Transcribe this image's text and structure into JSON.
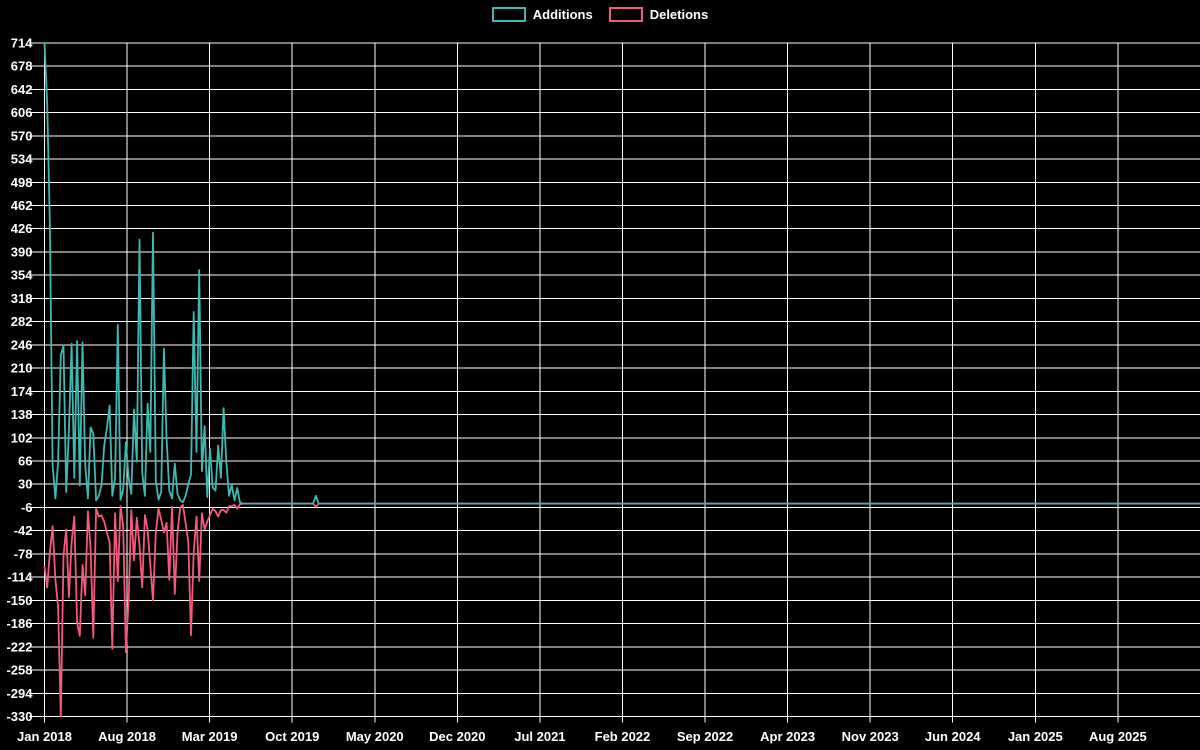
{
  "chart_data": {
    "type": "line",
    "title": "",
    "description": "Weekly code additions and deletions frequency chart on black background with white grid",
    "legend_position": "top-center",
    "grid": true,
    "background_color": "#000000",
    "grid_color": "#ffffff",
    "axis_text_color": "#ffffff",
    "series": [
      {
        "name": "Additions",
        "color": "#3fb8af"
      },
      {
        "name": "Deletions",
        "color": "#f4597c"
      }
    ],
    "x_axis": {
      "unit": "week",
      "start_week": "2018-01-01",
      "weeks_total": 427,
      "tick_labels": [
        "Jan 2018",
        "Aug 2018",
        "Mar 2019",
        "Oct 2019",
        "May 2020",
        "Dec 2020",
        "Jul 2021",
        "Feb 2022",
        "Sep 2022",
        "Apr 2023",
        "Nov 2023",
        "Jun 2024",
        "Jan 2025",
        "Aug 2025"
      ],
      "tick_spacing_months": 7
    },
    "y_axis": {
      "max": 714,
      "min": -330,
      "step": 36,
      "tick_labels": [
        714,
        678,
        642,
        606,
        570,
        534,
        498,
        462,
        426,
        390,
        354,
        318,
        282,
        246,
        210,
        174,
        138,
        102,
        66,
        30,
        -6,
        -42,
        -78,
        -114,
        -150,
        -186,
        -222,
        -258,
        -294,
        -330
      ]
    },
    "weekly_data_columns": [
      "week_index",
      "week_start",
      "additions",
      "deletions"
    ],
    "weekly_data": [
      [
        0,
        "2018-01-01",
        714,
        -98
      ],
      [
        1,
        "2018-01-08",
        620,
        -130
      ],
      [
        2,
        "2018-01-15",
        430,
        -75
      ],
      [
        3,
        "2018-01-22",
        60,
        -35
      ],
      [
        4,
        "2018-01-29",
        8,
        -118
      ],
      [
        5,
        "2018-02-05",
        65,
        -160
      ],
      [
        6,
        "2018-02-12",
        230,
        -330
      ],
      [
        7,
        "2018-02-19",
        245,
        -80
      ],
      [
        8,
        "2018-02-26",
        18,
        -40
      ],
      [
        9,
        "2018-03-05",
        112,
        -145
      ],
      [
        10,
        "2018-03-12",
        248,
        -60
      ],
      [
        11,
        "2018-03-19",
        40,
        -20
      ],
      [
        12,
        "2018-03-26",
        252,
        -185
      ],
      [
        13,
        "2018-04-02",
        28,
        -205
      ],
      [
        14,
        "2018-04-09",
        250,
        -95
      ],
      [
        15,
        "2018-04-16",
        60,
        -142
      ],
      [
        16,
        "2018-04-23",
        8,
        -12
      ],
      [
        17,
        "2018-04-30",
        118,
        -70
      ],
      [
        18,
        "2018-05-07",
        108,
        -208
      ],
      [
        19,
        "2018-05-14",
        5,
        -8
      ],
      [
        20,
        "2018-05-21",
        12,
        -20
      ],
      [
        21,
        "2018-05-28",
        28,
        -18
      ],
      [
        22,
        "2018-06-04",
        90,
        -28
      ],
      [
        23,
        "2018-06-11",
        117,
        -45
      ],
      [
        24,
        "2018-06-18",
        152,
        -60
      ],
      [
        25,
        "2018-06-25",
        12,
        -225
      ],
      [
        26,
        "2018-07-02",
        40,
        -15
      ],
      [
        27,
        "2018-07-09",
        277,
        -120
      ],
      [
        28,
        "2018-07-16",
        6,
        -4
      ],
      [
        29,
        "2018-07-23",
        22,
        -35
      ],
      [
        30,
        "2018-07-30",
        95,
        -230
      ],
      [
        31,
        "2018-08-06",
        40,
        -150
      ],
      [
        32,
        "2018-08-13",
        15,
        -10
      ],
      [
        33,
        "2018-08-20",
        146,
        -88
      ],
      [
        34,
        "2018-08-27",
        65,
        -22
      ],
      [
        35,
        "2018-09-03",
        409,
        -65
      ],
      [
        36,
        "2018-09-10",
        48,
        -130
      ],
      [
        37,
        "2018-09-17",
        12,
        -18
      ],
      [
        38,
        "2018-09-24",
        155,
        -40
      ],
      [
        39,
        "2018-10-01",
        80,
        -95
      ],
      [
        40,
        "2018-10-08",
        420,
        -150
      ],
      [
        41,
        "2018-10-15",
        36,
        -45
      ],
      [
        42,
        "2018-10-22",
        6,
        -8
      ],
      [
        43,
        "2018-10-29",
        18,
        -25
      ],
      [
        44,
        "2018-11-05",
        240,
        -45
      ],
      [
        45,
        "2018-11-12",
        100,
        -30
      ],
      [
        46,
        "2018-11-19",
        20,
        -118
      ],
      [
        47,
        "2018-11-26",
        8,
        -5
      ],
      [
        48,
        "2018-12-03",
        62,
        -140
      ],
      [
        49,
        "2018-12-10",
        15,
        -45
      ],
      [
        50,
        "2018-12-17",
        5,
        -6
      ],
      [
        51,
        "2018-12-24",
        2,
        -2
      ],
      [
        52,
        "2018-12-31",
        12,
        -30
      ],
      [
        53,
        "2019-01-07",
        30,
        -60
      ],
      [
        54,
        "2019-01-14",
        45,
        -204
      ],
      [
        55,
        "2019-01-21",
        297,
        -75
      ],
      [
        56,
        "2019-01-28",
        80,
        -20
      ],
      [
        57,
        "2019-02-04",
        362,
        -120
      ],
      [
        58,
        "2019-02-11",
        50,
        -15
      ],
      [
        59,
        "2019-02-18",
        120,
        -40
      ],
      [
        60,
        "2019-02-25",
        10,
        -28
      ],
      [
        61,
        "2019-03-04",
        85,
        -18
      ],
      [
        62,
        "2019-03-11",
        25,
        -8
      ],
      [
        63,
        "2019-03-18",
        20,
        -12
      ],
      [
        64,
        "2019-03-25",
        90,
        -20
      ],
      [
        65,
        "2019-04-01",
        40,
        -10
      ],
      [
        66,
        "2019-04-08",
        148,
        -10
      ],
      [
        67,
        "2019-04-15",
        65,
        -14
      ],
      [
        68,
        "2019-04-22",
        12,
        -4
      ],
      [
        69,
        "2019-04-29",
        29,
        -4
      ],
      [
        70,
        "2019-05-06",
        5,
        -2
      ],
      [
        71,
        "2019-05-13",
        24,
        -8
      ],
      [
        72,
        "2019-05-20",
        2,
        -1
      ],
      [
        100,
        "2019-12-02",
        12,
        -5
      ]
    ],
    "flat_weeks_note": "All weeks not listed above have 0 additions and 0 deletions; both lines run flat at zero from mid-2019 to the right edge of the chart"
  }
}
